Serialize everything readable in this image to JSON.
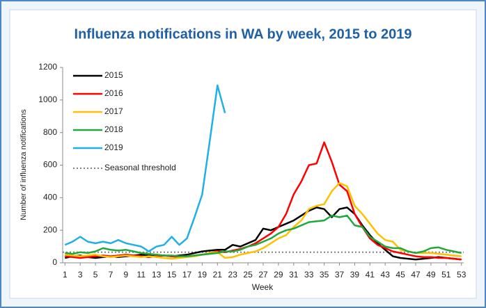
{
  "chart_data": {
    "type": "line",
    "title": "Influenza notifications in WA by week, 2015 to 2019",
    "x_label": "Week",
    "y_label": "Number of influenza notifications",
    "x": [
      1,
      2,
      3,
      4,
      5,
      6,
      7,
      8,
      9,
      10,
      11,
      12,
      13,
      14,
      15,
      16,
      17,
      18,
      19,
      20,
      21,
      22,
      23,
      24,
      25,
      26,
      27,
      28,
      29,
      30,
      31,
      32,
      33,
      34,
      35,
      36,
      37,
      38,
      39,
      40,
      41,
      42,
      43,
      44,
      45,
      46,
      47,
      48,
      49,
      50,
      51,
      52,
      53
    ],
    "xlim": [
      0.7,
      53.3
    ],
    "xticks": [
      1,
      3,
      5,
      7,
      9,
      11,
      13,
      15,
      17,
      19,
      21,
      23,
      25,
      27,
      29,
      31,
      33,
      35,
      37,
      39,
      41,
      43,
      45,
      47,
      49,
      51,
      53
    ],
    "ylim": [
      0,
      1200
    ],
    "yticks": [
      0,
      200,
      400,
      600,
      800,
      1000,
      1200
    ],
    "legend": "upper left",
    "series": [
      {
        "name": "2015",
        "color": "#000000",
        "values": [
          30,
          40,
          45,
          35,
          30,
          35,
          40,
          35,
          40,
          45,
          50,
          45,
          40,
          45,
          40,
          45,
          50,
          60,
          70,
          75,
          80,
          80,
          110,
          100,
          120,
          140,
          210,
          200,
          220,
          240,
          260,
          290,
          320,
          340,
          330,
          280,
          330,
          340,
          300,
          230,
          170,
          120,
          80,
          40,
          30,
          25,
          20,
          25,
          30,
          35,
          30,
          25,
          20
        ]
      },
      {
        "name": "2016",
        "color": "#ff0000",
        "values": [
          40,
          35,
          30,
          35,
          40,
          45,
          40,
          45,
          50,
          45,
          40,
          35,
          40,
          45,
          40,
          35,
          40,
          45,
          50,
          60,
          70,
          65,
          75,
          85,
          100,
          120,
          150,
          180,
          220,
          300,
          420,
          500,
          600,
          610,
          740,
          620,
          480,
          440,
          300,
          220,
          150,
          110,
          90,
          70,
          60,
          50,
          40,
          35,
          35,
          30,
          30,
          25,
          20
        ]
      },
      {
        "name": "2017",
        "color": "#ffc000",
        "values": [
          50,
          45,
          40,
          45,
          50,
          40,
          35,
          40,
          45,
          40,
          35,
          40,
          35,
          30,
          25,
          30,
          35,
          40,
          50,
          60,
          65,
          30,
          35,
          50,
          60,
          70,
          90,
          120,
          150,
          170,
          220,
          260,
          330,
          350,
          360,
          440,
          490,
          470,
          350,
          300,
          240,
          180,
          140,
          130,
          80,
          70,
          60,
          60,
          60,
          55,
          50,
          45,
          40
        ]
      },
      {
        "name": "2018",
        "color": "#1fa83c",
        "values": [
          60,
          55,
          65,
          60,
          70,
          90,
          80,
          75,
          80,
          70,
          60,
          55,
          50,
          45,
          45,
          40,
          40,
          45,
          50,
          55,
          60,
          70,
          70,
          80,
          100,
          110,
          130,
          150,
          180,
          200,
          210,
          230,
          250,
          255,
          260,
          290,
          280,
          290,
          230,
          220,
          160,
          130,
          100,
          90,
          90,
          70,
          60,
          70,
          90,
          95,
          80,
          70,
          60
        ]
      },
      {
        "name": "2019",
        "color": "#1fb0e8",
        "values": [
          110,
          130,
          160,
          130,
          120,
          130,
          120,
          140,
          120,
          110,
          100,
          70,
          100,
          110,
          160,
          110,
          150,
          280,
          420,
          750,
          1090,
          920,
          null,
          null,
          null,
          null,
          null,
          null,
          null,
          null,
          null,
          null,
          null,
          null,
          null,
          null,
          null,
          null,
          null,
          null,
          null,
          null,
          null,
          null,
          null,
          null,
          null,
          null,
          null,
          null,
          null,
          null,
          null
        ]
      }
    ],
    "threshold": {
      "name": "Seasonal threshold",
      "value": 65,
      "color": "#808080"
    }
  }
}
